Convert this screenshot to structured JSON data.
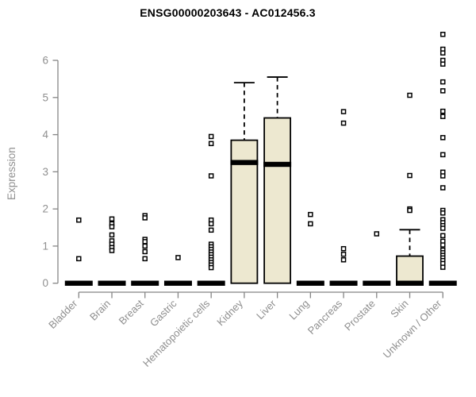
{
  "title": "ENSG00000203643 - AC012456.3",
  "chart_data": {
    "type": "boxplot",
    "title": "ENSG00000203643 - AC012456.3",
    "xlabel": "",
    "ylabel": "Expression",
    "ylim": [
      0,
      6.8
    ],
    "yticks": [
      0,
      1,
      2,
      3,
      4,
      5,
      6
    ],
    "grid": false,
    "legend": "none",
    "box_fill": "#ede8d0",
    "box_stroke": "#000000",
    "axis_color": "#858585",
    "label_color": "#8f8f8f",
    "outlier_marker": "open-square",
    "categories": [
      "Bladder",
      "Brain",
      "Breast",
      "Gastric",
      "Hematopoietic cells",
      "Kidney",
      "Liver",
      "Lung",
      "Pancreas",
      "Prostate",
      "Skin",
      "Unknown / Other"
    ],
    "series": [
      {
        "name": "Bladder",
        "whisker_low": 0,
        "q1": 0,
        "median": 0,
        "q3": 0,
        "whisker_high": 0,
        "outliers": [
          1.7,
          0.66
        ]
      },
      {
        "name": "Brain",
        "whisker_low": 0,
        "q1": 0,
        "median": 0,
        "q3": 0,
        "whisker_high": 0,
        "outliers": [
          1.73,
          1.6,
          1.52,
          1.3,
          1.14,
          1.05,
          0.96,
          0.88
        ]
      },
      {
        "name": "Breast",
        "whisker_low": 0,
        "q1": 0,
        "median": 0,
        "q3": 0,
        "whisker_high": 0,
        "outliers": [
          1.82,
          1.76,
          1.18,
          1.12,
          1.0,
          0.85,
          0.66
        ]
      },
      {
        "name": "Gastric",
        "whisker_low": 0,
        "q1": 0,
        "median": 0,
        "q3": 0,
        "whisker_high": 0,
        "outliers": [
          0.69
        ]
      },
      {
        "name": "Hematopoietic cells",
        "whisker_low": 0,
        "q1": 0,
        "median": 0,
        "q3": 0,
        "whisker_high": 0,
        "outliers": [
          3.95,
          3.76,
          2.89,
          1.7,
          1.6,
          1.43,
          1.05,
          0.98,
          0.91,
          0.84,
          0.77,
          0.7,
          0.63,
          0.56,
          0.49,
          0.42
        ]
      },
      {
        "name": "Kidney",
        "whisker_low": 0,
        "q1": 0,
        "median": 3.25,
        "q3": 3.85,
        "whisker_high": 5.4,
        "outliers": []
      },
      {
        "name": "Liver",
        "whisker_low": 0,
        "q1": 0,
        "median": 3.2,
        "q3": 4.45,
        "whisker_high": 5.55,
        "outliers": []
      },
      {
        "name": "Lung",
        "whisker_low": 0,
        "q1": 0,
        "median": 0,
        "q3": 0,
        "whisker_high": 0,
        "outliers": [
          1.85,
          1.6
        ]
      },
      {
        "name": "Pancreas",
        "whisker_low": 0,
        "q1": 0,
        "median": 0,
        "q3": 0,
        "whisker_high": 0,
        "outliers": [
          4.62,
          4.31,
          0.93,
          0.78,
          0.63
        ]
      },
      {
        "name": "Prostate",
        "whisker_low": 0,
        "q1": 0,
        "median": 0,
        "q3": 0,
        "whisker_high": 0,
        "outliers": [
          1.33
        ]
      },
      {
        "name": "Skin",
        "whisker_low": 0,
        "q1": 0,
        "median": 0,
        "q3": 0.73,
        "whisker_high": 1.44,
        "outliers": [
          5.06,
          2.9,
          2.0,
          1.96
        ]
      },
      {
        "name": "Unknown / Other",
        "whisker_low": 0,
        "q1": 0,
        "median": 0,
        "q3": 0,
        "whisker_high": 0,
        "outliers": [
          6.7,
          6.3,
          6.2,
          6.0,
          5.9,
          5.42,
          5.18,
          4.63,
          4.49,
          3.92,
          3.46,
          2.99,
          2.89,
          2.57,
          1.96,
          1.89,
          1.71,
          1.63,
          1.55,
          1.48,
          1.28,
          1.13,
          1.03,
          0.89,
          0.82,
          0.75,
          0.68,
          0.61,
          0.53,
          0.43
        ]
      }
    ]
  }
}
